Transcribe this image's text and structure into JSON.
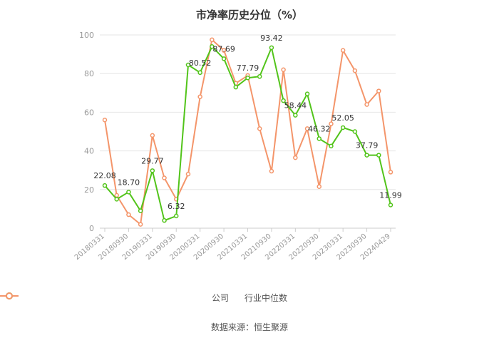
{
  "chart_data": {
    "type": "line",
    "title": "市净率历史分位（%）",
    "x": [
      "20180331",
      "20180630",
      "20180930",
      "20181231",
      "20190331",
      "20190630",
      "20190930",
      "20191231",
      "20200331",
      "20200630",
      "20200930",
      "20201231",
      "20210331",
      "20210630",
      "20210930",
      "20211231",
      "20220331",
      "20220630",
      "20220930",
      "20221231",
      "20230331",
      "20230630",
      "20230930",
      "20231231",
      "20240429"
    ],
    "x_tick_labels": [
      "20180331",
      "20180930",
      "20190331",
      "20190930",
      "20200331",
      "20200930",
      "20210331",
      "20210930",
      "20220331",
      "20220930",
      "20230331",
      "20230930",
      "20240429"
    ],
    "ylim": [
      0,
      100
    ],
    "y_ticks": [
      0,
      20,
      40,
      60,
      80,
      100
    ],
    "grid": true,
    "legend_position": "bottom",
    "series": [
      {
        "name": "公司",
        "color": "#52c41a",
        "values": [
          22.08,
          15.0,
          18.7,
          9.0,
          29.77,
          4.0,
          6.32,
          84.5,
          80.52,
          94.0,
          87.69,
          73.0,
          77.79,
          78.5,
          93.42,
          66.0,
          58.44,
          69.5,
          46.32,
          42.5,
          52.05,
          50.0,
          37.79,
          37.79,
          11.99
        ],
        "data_labels": [
          {
            "index": 0,
            "text": "22.08"
          },
          {
            "index": 2,
            "text": "18.70"
          },
          {
            "index": 4,
            "text": "29.77"
          },
          {
            "index": 6,
            "text": "6.32"
          },
          {
            "index": 8,
            "text": "80.52"
          },
          {
            "index": 10,
            "text": "87.69"
          },
          {
            "index": 12,
            "text": "77.79"
          },
          {
            "index": 14,
            "text": "93.42"
          },
          {
            "index": 16,
            "text": "58.44"
          },
          {
            "index": 18,
            "text": "46.32"
          },
          {
            "index": 20,
            "text": "52.05"
          },
          {
            "index": 22,
            "text": "37.79"
          },
          {
            "index": 24,
            "text": "11.99"
          }
        ]
      },
      {
        "name": "行业中位数",
        "color": "#f4956a",
        "values": [
          56.0,
          17.0,
          7.0,
          2.0,
          48.0,
          26.0,
          15.0,
          28.0,
          68.0,
          97.5,
          92.0,
          75.0,
          79.0,
          51.5,
          29.5,
          82.0,
          36.5,
          51.5,
          21.5,
          54.0,
          92.0,
          81.5,
          64.0,
          71.0,
          29.0
        ]
      }
    ]
  },
  "source": "数据来源：恒生聚源"
}
